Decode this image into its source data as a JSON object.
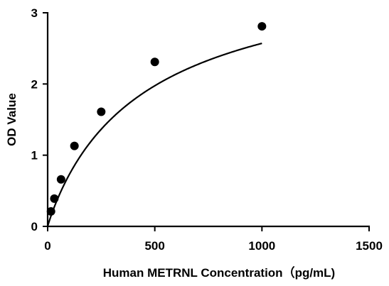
{
  "chart_data": {
    "type": "scatter",
    "title": "",
    "xlabel": "Human METRNL Concentration（pg/mL)",
    "ylabel": "OD Value",
    "xlim": [
      0,
      1500
    ],
    "ylim": [
      0,
      3
    ],
    "xticks": [
      "0",
      "500",
      "1000",
      "1500"
    ],
    "yticks": [
      "0",
      "1",
      "2",
      "3"
    ],
    "grid": false,
    "legend": "none",
    "marker_color": "#000000",
    "curve_color": "#000000",
    "fit": "four-parameter logistic curve through the points",
    "series": [
      {
        "x": [
          15.625,
          31.25,
          62.5,
          125,
          250,
          500,
          1000
        ],
        "y": [
          0.21,
          0.39,
          0.66,
          1.13,
          1.61,
          2.31,
          2.81
        ]
      }
    ]
  }
}
